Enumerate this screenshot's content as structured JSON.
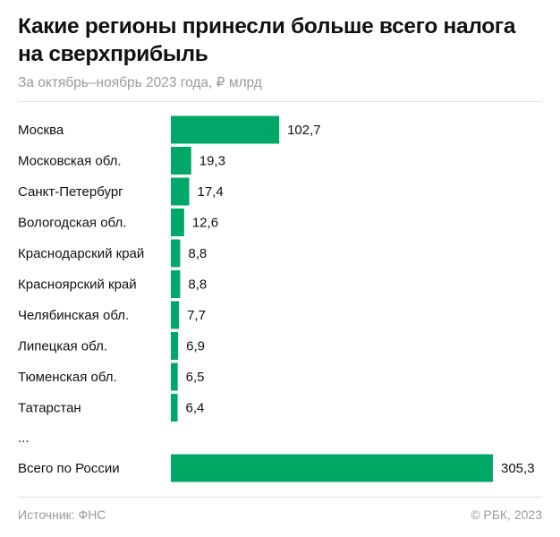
{
  "header": {
    "title": "Какие регионы принесли больше всего налога на сверхприбыль",
    "subtitle": "За октябрь–ноябрь 2023 года, ₽ млрд"
  },
  "chart_data": {
    "type": "bar",
    "orientation": "horizontal",
    "categories": [
      "Москва",
      "Московская обл.",
      "Санкт-Петербург",
      "Вологодская обл.",
      "Краснодарский край",
      "Красноярский край",
      "Челябинская обл.",
      "Липецкая обл.",
      "Тюменская обл.",
      "Татарстан"
    ],
    "values": [
      102.7,
      19.3,
      17.4,
      12.6,
      8.8,
      8.8,
      7.7,
      6.9,
      6.5,
      6.4
    ],
    "value_labels": [
      "102,7",
      "19,3",
      "17,4",
      "12,6",
      "8,8",
      "8,8",
      "7,7",
      "6,9",
      "6,5",
      "6,4"
    ],
    "ellipsis": "...",
    "total": {
      "category": "Всего по России",
      "value": 305.3,
      "value_label": "305,3"
    },
    "xlim": [
      0,
      305.3
    ],
    "grid": false,
    "bar_color": "#00a868"
  },
  "footer": {
    "source": "Источник: ФНС",
    "copyright": "© РБК, 2023"
  }
}
